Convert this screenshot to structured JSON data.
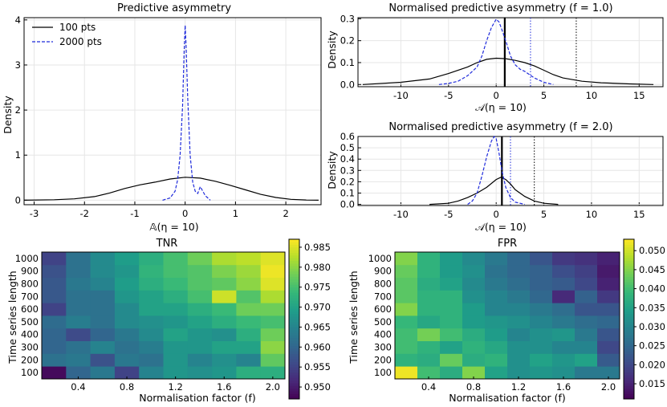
{
  "colors": {
    "black": "#000000",
    "blue": "#1f2bdb",
    "grid": "#e6e6e6"
  },
  "chart_data": [
    {
      "id": "p1",
      "type": "line",
      "title": "Predictive asymmetry",
      "xlabel": "𝔸(η = 10)",
      "ylabel": "Density",
      "xlim": [
        -3.2,
        2.7
      ],
      "ylim": [
        -0.1,
        4.05
      ],
      "xticks": [
        -3,
        -2,
        -1,
        0,
        1,
        2
      ],
      "yticks": [
        0,
        1,
        2,
        3,
        4
      ],
      "legend": {
        "position": "top-left",
        "entries": [
          "100 pts",
          "2000 pts"
        ]
      },
      "series": [
        {
          "name": "100 pts",
          "style": "solid",
          "x": [
            -3.2,
            -2.6,
            -2.2,
            -1.8,
            -1.5,
            -1.2,
            -0.9,
            -0.6,
            -0.3,
            0.0,
            0.3,
            0.6,
            0.9,
            1.2,
            1.5,
            1.8,
            2.1,
            2.4,
            2.65
          ],
          "y": [
            0.0,
            0.01,
            0.03,
            0.08,
            0.16,
            0.26,
            0.34,
            0.4,
            0.47,
            0.51,
            0.49,
            0.42,
            0.33,
            0.23,
            0.13,
            0.06,
            0.02,
            0.005,
            0.0
          ]
        },
        {
          "name": "2000 pts",
          "style": "dashed",
          "x": [
            -0.45,
            -0.3,
            -0.2,
            -0.15,
            -0.1,
            -0.05,
            -0.02,
            0.0,
            0.02,
            0.05,
            0.1,
            0.15,
            0.2,
            0.25,
            0.3,
            0.4,
            0.5
          ],
          "y": [
            0.0,
            0.05,
            0.2,
            0.45,
            1.0,
            2.1,
            3.3,
            3.88,
            3.4,
            2.3,
            1.0,
            0.4,
            0.2,
            0.15,
            0.3,
            0.1,
            0.0
          ]
        }
      ]
    },
    {
      "id": "p2",
      "type": "line",
      "title": "Normalised predictive asymmetry (f = 1.0)",
      "xlabel": "𝒜(η = 10)",
      "ylabel": "Density",
      "xlim": [
        -14.5,
        17.5
      ],
      "ylim": [
        -0.01,
        0.305
      ],
      "xticks": [
        -10,
        -5,
        0,
        5,
        10,
        15
      ],
      "yticks": [
        0.0,
        0.1,
        0.2,
        0.3
      ],
      "vlines": [
        {
          "x": 0.9,
          "style": "thick-black"
        },
        {
          "x": 3.6,
          "style": "dotted-blue"
        },
        {
          "x": 8.4,
          "style": "dotted-black"
        }
      ],
      "series": [
        {
          "name": "100 pts",
          "style": "solid",
          "x": [
            -14,
            -10,
            -7,
            -5,
            -3,
            -2,
            -1,
            0,
            1,
            2,
            3,
            4,
            5,
            6,
            7,
            9,
            11,
            14,
            16.5
          ],
          "y": [
            0.0,
            0.01,
            0.025,
            0.05,
            0.08,
            0.1,
            0.115,
            0.12,
            0.118,
            0.11,
            0.1,
            0.085,
            0.065,
            0.045,
            0.03,
            0.015,
            0.008,
            0.003,
            0.0
          ]
        },
        {
          "name": "2000 pts",
          "style": "dashed",
          "x": [
            -6,
            -5,
            -4,
            -3,
            -2,
            -1.5,
            -1,
            -0.5,
            0,
            0.3,
            0.6,
            1,
            1.5,
            2,
            2.5,
            3,
            4,
            5,
            6
          ],
          "y": [
            0.0,
            0.005,
            0.015,
            0.04,
            0.08,
            0.13,
            0.2,
            0.26,
            0.298,
            0.285,
            0.25,
            0.2,
            0.13,
            0.09,
            0.07,
            0.06,
            0.03,
            0.01,
            0.0
          ]
        }
      ]
    },
    {
      "id": "p3",
      "type": "line",
      "title": "Normalised predictive asymmetry (f = 2.0)",
      "xlabel": "𝒜(η = 10)",
      "ylabel": "Density",
      "xlim": [
        -14.5,
        17.5
      ],
      "ylim": [
        -0.01,
        0.6
      ],
      "xticks": [
        -10,
        -5,
        0,
        5,
        10,
        15
      ],
      "yticks": [
        0.0,
        0.1,
        0.2,
        0.3,
        0.4,
        0.5,
        0.6
      ],
      "vlines": [
        {
          "x": 0.6,
          "style": "thick-black"
        },
        {
          "x": 1.5,
          "style": "dotted-blue"
        },
        {
          "x": 4.0,
          "style": "dotted-black"
        }
      ],
      "series": [
        {
          "name": "100 pts",
          "style": "solid",
          "x": [
            -7,
            -5,
            -4,
            -3,
            -2,
            -1,
            0,
            0.5,
            1,
            1.5,
            2,
            3,
            4,
            5,
            6.5
          ],
          "y": [
            0.0,
            0.01,
            0.03,
            0.06,
            0.1,
            0.15,
            0.22,
            0.24,
            0.22,
            0.18,
            0.13,
            0.07,
            0.03,
            0.01,
            0.0
          ]
        },
        {
          "name": "2000 pts",
          "style": "dashed",
          "x": [
            -3,
            -2.5,
            -2,
            -1.5,
            -1,
            -0.5,
            -0.2,
            0,
            0.3,
            0.6,
            1,
            1.5,
            2,
            3
          ],
          "y": [
            0.0,
            0.03,
            0.1,
            0.25,
            0.42,
            0.56,
            0.6,
            0.58,
            0.45,
            0.3,
            0.15,
            0.06,
            0.02,
            0.0
          ]
        }
      ]
    },
    {
      "id": "p4",
      "type": "heatmap",
      "title": "TNR",
      "xlabel": "Normalisation factor (f)",
      "ylabel": "Time series length",
      "xlim": [
        0.1,
        2.1
      ],
      "x_ticks": [
        0.4,
        0.8,
        1.2,
        1.6,
        2.0
      ],
      "y_categories": [
        100,
        200,
        300,
        400,
        500,
        600,
        700,
        800,
        900,
        1000
      ],
      "colorbar_range": [
        0.947,
        0.987
      ],
      "colorbar_ticks": [
        0.95,
        0.955,
        0.96,
        0.965,
        0.97,
        0.975,
        0.98,
        0.985
      ],
      "values": [
        [
          0.948,
          0.96,
          0.963,
          0.955,
          0.965,
          0.968,
          0.967,
          0.968,
          0.972,
          0.972
        ],
        [
          0.962,
          0.963,
          0.957,
          0.963,
          0.962,
          0.968,
          0.965,
          0.967,
          0.965,
          0.977
        ],
        [
          0.96,
          0.962,
          0.965,
          0.962,
          0.964,
          0.968,
          0.968,
          0.97,
          0.97,
          0.98
        ],
        [
          0.96,
          0.956,
          0.96,
          0.963,
          0.966,
          0.97,
          0.968,
          0.967,
          0.972,
          0.978
        ],
        [
          0.961,
          0.964,
          0.962,
          0.966,
          0.967,
          0.968,
          0.97,
          0.972,
          0.974,
          0.975
        ],
        [
          0.955,
          0.962,
          0.962,
          0.966,
          0.97,
          0.97,
          0.972,
          0.974,
          0.978,
          0.978
        ],
        [
          0.958,
          0.962,
          0.962,
          0.968,
          0.97,
          0.972,
          0.975,
          0.984,
          0.976,
          0.982
        ],
        [
          0.958,
          0.963,
          0.965,
          0.969,
          0.972,
          0.974,
          0.976,
          0.977,
          0.98,
          0.985
        ],
        [
          0.957,
          0.962,
          0.966,
          0.968,
          0.973,
          0.975,
          0.976,
          0.979,
          0.981,
          0.986
        ],
        [
          0.955,
          0.962,
          0.966,
          0.969,
          0.972,
          0.975,
          0.978,
          0.982,
          0.983,
          0.985
        ]
      ]
    },
    {
      "id": "p5",
      "type": "heatmap",
      "title": "FPR",
      "xlabel": "Normalisation factor (f)",
      "ylabel": "Time series length",
      "xlim": [
        0.1,
        2.1
      ],
      "x_ticks": [
        0.4,
        0.8,
        1.2,
        1.6,
        2.0
      ],
      "y_categories": [
        100,
        200,
        300,
        400,
        500,
        600,
        700,
        800,
        900,
        1000
      ],
      "colorbar_range": [
        0.011,
        0.053
      ],
      "colorbar_ticks": [
        0.015,
        0.02,
        0.025,
        0.03,
        0.035,
        0.04,
        0.045,
        0.05
      ],
      "values": [
        [
          0.052,
          0.04,
          0.037,
          0.045,
          0.035,
          0.032,
          0.033,
          0.032,
          0.028,
          0.028
        ],
        [
          0.038,
          0.037,
          0.043,
          0.037,
          0.038,
          0.032,
          0.035,
          0.033,
          0.035,
          0.023
        ],
        [
          0.04,
          0.038,
          0.035,
          0.038,
          0.036,
          0.032,
          0.032,
          0.03,
          0.03,
          0.02
        ],
        [
          0.04,
          0.044,
          0.04,
          0.037,
          0.034,
          0.03,
          0.032,
          0.033,
          0.028,
          0.022
        ],
        [
          0.039,
          0.036,
          0.038,
          0.034,
          0.033,
          0.032,
          0.03,
          0.028,
          0.026,
          0.025
        ],
        [
          0.045,
          0.038,
          0.038,
          0.034,
          0.03,
          0.03,
          0.028,
          0.026,
          0.022,
          0.022
        ],
        [
          0.042,
          0.038,
          0.038,
          0.032,
          0.03,
          0.028,
          0.025,
          0.016,
          0.024,
          0.018
        ],
        [
          0.042,
          0.037,
          0.035,
          0.031,
          0.028,
          0.026,
          0.024,
          0.023,
          0.02,
          0.015
        ],
        [
          0.043,
          0.038,
          0.034,
          0.032,
          0.027,
          0.025,
          0.024,
          0.021,
          0.019,
          0.014
        ],
        [
          0.045,
          0.038,
          0.034,
          0.031,
          0.028,
          0.025,
          0.022,
          0.018,
          0.017,
          0.015
        ]
      ]
    }
  ]
}
